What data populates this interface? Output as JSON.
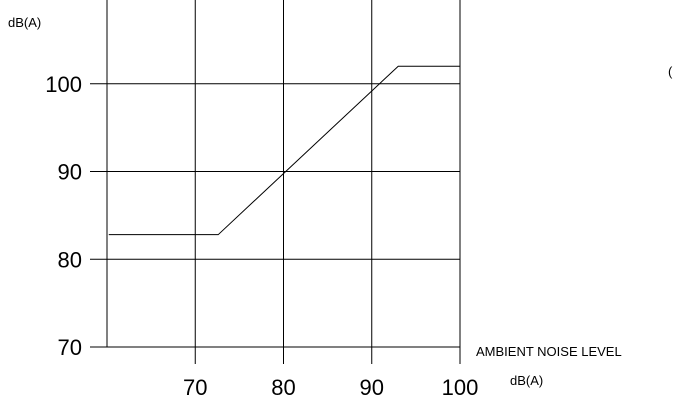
{
  "chart_data": {
    "type": "line",
    "title": "",
    "xlabel": "AMBIENT NOISE LEVEL",
    "xunit": "dB(A)",
    "yunit": "dB(A)",
    "xlim": [
      60,
      100
    ],
    "ylim": [
      70,
      110
    ],
    "xticks": [
      70,
      80,
      90,
      100
    ],
    "yticks": [
      70,
      80,
      90,
      100
    ],
    "xtick_labels": [
      "70",
      "80",
      "90",
      "100"
    ],
    "ytick_labels": [
      "70",
      "80",
      "90",
      "100"
    ],
    "grid": true,
    "legend": "none",
    "series": [
      {
        "x": [
          60.2,
          72.6,
          93.0,
          100.0
        ],
        "y": [
          82.8,
          82.8,
          102.0,
          102.0
        ]
      }
    ],
    "annotations": [
      {
        "text": "("
      }
    ]
  },
  "style": {
    "line_color": "#000000",
    "grid_color": "#000000",
    "background": "#ffffff"
  }
}
